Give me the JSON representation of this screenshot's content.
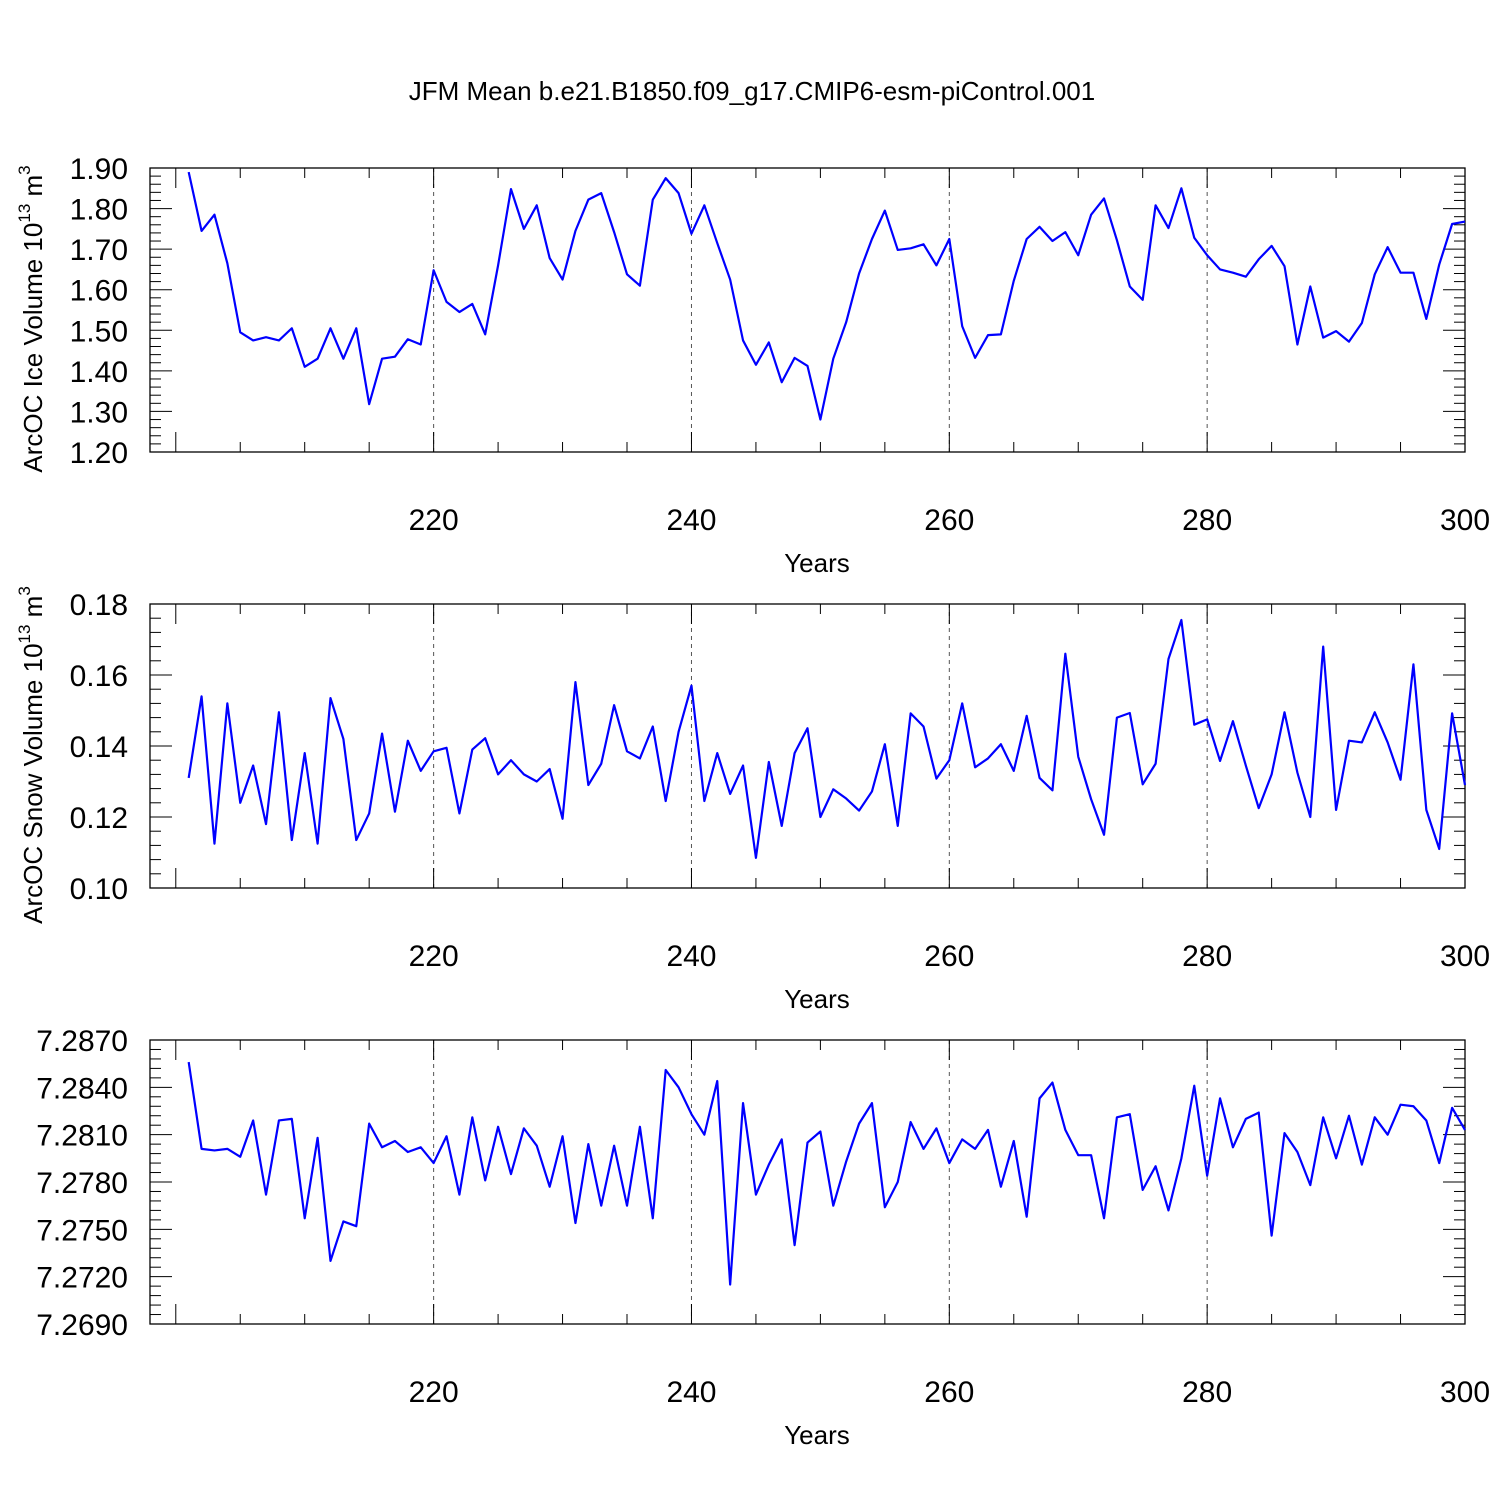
{
  "title": "JFM Mean b.e21.B1850.f09_g17.CMIP6-esm-piControl.001",
  "colors": {
    "line": "#0000ff",
    "axis": "#000000"
  },
  "chart_data": [
    {
      "type": "line",
      "xlabel": "Years",
      "ylabel": "ArcOC Ice Volume 10",
      "ylabel_sup": "13",
      "ylabel_unit": " m",
      "ylabel_unit_sup": "3",
      "xlim": [
        198,
        300
      ],
      "ylim": [
        1.2,
        1.9
      ],
      "xticks": [
        220,
        240,
        260,
        280,
        300
      ],
      "xtick_labels": [
        "220",
        "240",
        "260",
        "280",
        "300"
      ],
      "yticks": [
        1.2,
        1.3,
        1.4,
        1.5,
        1.6,
        1.7,
        1.8,
        1.9
      ],
      "ytick_labels": [
        "1.20",
        "1.30",
        "1.40",
        "1.50",
        "1.60",
        "1.70",
        "1.80",
        "1.90"
      ],
      "grid": "vertical dashed at major x ticks",
      "x_start": 201,
      "x_end": 300,
      "values": [
        1.89,
        1.745,
        1.785,
        1.665,
        1.495,
        1.475,
        1.483,
        1.475,
        1.505,
        1.41,
        1.43,
        1.505,
        1.43,
        1.505,
        1.318,
        1.43,
        1.435,
        1.478,
        1.465,
        1.648,
        1.57,
        1.545,
        1.565,
        1.49,
        1.66,
        1.848,
        1.75,
        1.808,
        1.678,
        1.625,
        1.745,
        1.822,
        1.838,
        1.742,
        1.638,
        1.61,
        1.822,
        1.875,
        1.838,
        1.738,
        1.808,
        1.715,
        1.625,
        1.475,
        1.415,
        1.47,
        1.372,
        1.432,
        1.412,
        1.28,
        1.43,
        1.52,
        1.64,
        1.725,
        1.795,
        1.698,
        1.702,
        1.712,
        1.66,
        1.725,
        1.51,
        1.432,
        1.488,
        1.49,
        1.622,
        1.725,
        1.755,
        1.72,
        1.742,
        1.685,
        1.785,
        1.825,
        1.722,
        1.608,
        1.575,
        1.808,
        1.752,
        1.85,
        1.728,
        1.685,
        1.65,
        1.642,
        1.632,
        1.675,
        1.708,
        1.658,
        1.465,
        1.608,
        1.482,
        1.498,
        1.472,
        1.518,
        1.638,
        1.705,
        1.642,
        1.642,
        1.528,
        1.662,
        1.762,
        1.768
      ]
    },
    {
      "type": "line",
      "xlabel": "Years",
      "ylabel": "ArcOC Snow Volume 10",
      "ylabel_sup": "13",
      "ylabel_unit": " m",
      "ylabel_unit_sup": "3",
      "xlim": [
        198,
        300
      ],
      "ylim": [
        0.1,
        0.18
      ],
      "xticks": [
        220,
        240,
        260,
        280,
        300
      ],
      "xtick_labels": [
        "220",
        "240",
        "260",
        "280",
        "300"
      ],
      "yticks": [
        0.1,
        0.12,
        0.14,
        0.16,
        0.18
      ],
      "ytick_labels": [
        "0.10",
        "0.12",
        "0.14",
        "0.16",
        "0.18"
      ],
      "grid": "vertical dashed at major x ticks",
      "x_start": 201,
      "x_end": 300,
      "values": [
        0.131,
        0.154,
        0.1125,
        0.152,
        0.124,
        0.1345,
        0.118,
        0.1495,
        0.1135,
        0.138,
        0.1125,
        0.1535,
        0.142,
        0.1135,
        0.121,
        0.1435,
        0.1215,
        0.1415,
        0.133,
        0.1385,
        0.1395,
        0.121,
        0.139,
        0.1422,
        0.132,
        0.136,
        0.132,
        0.13,
        0.1335,
        0.1195,
        0.158,
        0.129,
        0.135,
        0.1515,
        0.1385,
        0.1365,
        0.1455,
        0.1245,
        0.144,
        0.157,
        0.1245,
        0.138,
        0.1265,
        0.1345,
        0.1085,
        0.1355,
        0.1175,
        0.138,
        0.145,
        0.12,
        0.1278,
        0.1252,
        0.1218,
        0.1272,
        0.1405,
        0.1175,
        0.1492,
        0.1455,
        0.1308,
        0.136,
        0.152,
        0.134,
        0.1365,
        0.1405,
        0.133,
        0.1485,
        0.131,
        0.1275,
        0.166,
        0.137,
        0.125,
        0.115,
        0.148,
        0.1493,
        0.1292,
        0.135,
        0.1645,
        0.1755,
        0.146,
        0.1475,
        0.1358,
        0.147,
        0.1345,
        0.1225,
        0.132,
        0.1495,
        0.1325,
        0.12,
        0.168,
        0.122,
        0.1415,
        0.141,
        0.1495,
        0.141,
        0.1305,
        0.163,
        0.122,
        0.111,
        0.1492,
        0.129
      ]
    },
    {
      "type": "line",
      "xlabel": "Years",
      "ylabel": "",
      "xlim": [
        198,
        300
      ],
      "ylim": [
        7.269,
        7.287
      ],
      "xticks": [
        220,
        240,
        260,
        280,
        300
      ],
      "xtick_labels": [
        "220",
        "240",
        "260",
        "280",
        "300"
      ],
      "yticks": [
        7.269,
        7.272,
        7.275,
        7.278,
        7.281,
        7.284,
        7.287
      ],
      "ytick_labels": [
        "7.2690",
        "7.2720",
        "7.2750",
        "7.2780",
        "7.2810",
        "7.2840",
        "7.2870"
      ],
      "grid": "vertical dashed at major x ticks",
      "x_start": 201,
      "x_end": 300,
      "values": [
        7.2856,
        7.2801,
        7.28,
        7.2801,
        7.2796,
        7.2819,
        7.2772,
        7.2819,
        7.282,
        7.2757,
        7.2808,
        7.273,
        7.2755,
        7.2752,
        7.2817,
        7.2802,
        7.2806,
        7.2799,
        7.2802,
        7.2792,
        7.2809,
        7.2772,
        7.2821,
        7.2781,
        7.2815,
        7.2785,
        7.2814,
        7.2803,
        7.2777,
        7.2809,
        7.2754,
        7.2804,
        7.2765,
        7.2803,
        7.2765,
        7.2815,
        7.2757,
        7.2851,
        7.284,
        7.2823,
        7.281,
        7.2844,
        7.2715,
        7.283,
        7.2772,
        7.2791,
        7.2807,
        7.274,
        7.2805,
        7.2812,
        7.2765,
        7.2793,
        7.2817,
        7.283,
        7.2764,
        7.278,
        7.2818,
        7.2801,
        7.2814,
        7.2792,
        7.2807,
        7.2801,
        7.2813,
        7.2777,
        7.2806,
        7.2758,
        7.2833,
        7.2843,
        7.2813,
        7.2797,
        7.2797,
        7.2757,
        7.2821,
        7.2823,
        7.2775,
        7.279,
        7.2762,
        7.2795,
        7.2841,
        7.2784,
        7.2833,
        7.2802,
        7.282,
        7.2824,
        7.2746,
        7.2811,
        7.2799,
        7.2778,
        7.2821,
        7.2795,
        7.2822,
        7.2791,
        7.2821,
        7.281,
        7.2829,
        7.2828,
        7.2819,
        7.2792,
        7.2827,
        7.2813
      ]
    }
  ]
}
